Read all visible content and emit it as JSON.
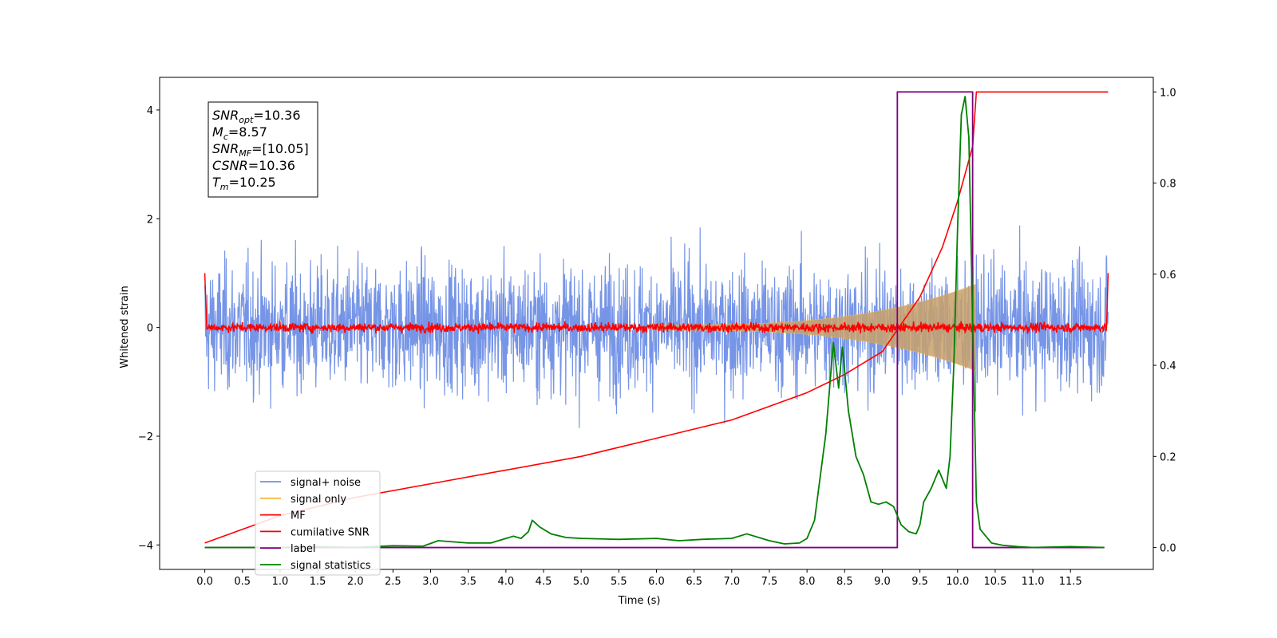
{
  "chart_data": {
    "type": "line",
    "xlabel": "Time (s)",
    "ylabel": "Whitened strain",
    "xlim": [
      -0.6,
      12.6
    ],
    "ylim": [
      -4.45,
      4.6
    ],
    "y2lim": [
      -0.048,
      1.032
    ],
    "x_ticks": [
      "0.0",
      "0.5",
      "1.0",
      "1.5",
      "2.0",
      "2.5",
      "3.0",
      "3.5",
      "4.0",
      "4.5",
      "5.0",
      "5.5",
      "6.0",
      "6.5",
      "7.0",
      "7.5",
      "8.0",
      "8.5",
      "9.0",
      "9.5",
      "10.0",
      "10.5",
      "11.0",
      "11.5"
    ],
    "y_ticks": [
      "−4",
      "−2",
      "0",
      "2",
      "4"
    ],
    "y2_ticks": [
      "0.0",
      "0.2",
      "0.4",
      "0.6",
      "0.8",
      "1.0"
    ],
    "legend_position": "lower left",
    "series": [
      {
        "name": "signal+ noise",
        "color": "#6f8fe6",
        "axis": "left",
        "description_range": [
          -4.0,
          4.15
        ],
        "x_range": [
          0.0,
          12.0
        ]
      },
      {
        "name": "signal only",
        "color": "#f5b942",
        "axis": "left",
        "chirp_end": 10.25
      },
      {
        "name": "MF",
        "color": "#ff0000",
        "axis": "left",
        "start_value": 1.0,
        "band": [
          -0.15,
          0.15
        ]
      },
      {
        "name": "cumilative SNR",
        "color": "#ff0000",
        "axis": "right",
        "x": [
          0.0,
          1.0,
          2.0,
          3.0,
          4.0,
          5.0,
          6.0,
          7.0,
          7.5,
          8.0,
          8.5,
          9.0,
          9.5,
          9.8,
          10.0,
          10.1,
          10.2,
          10.25,
          12.0
        ],
        "y": [
          0.01,
          0.07,
          0.11,
          0.14,
          0.17,
          0.2,
          0.24,
          0.28,
          0.31,
          0.34,
          0.38,
          0.43,
          0.55,
          0.66,
          0.76,
          0.82,
          0.88,
          1.0,
          1.0
        ]
      },
      {
        "name": "label",
        "color": "#800080",
        "axis": "right",
        "x": [
          0.0,
          9.2,
          9.2,
          10.2,
          10.2,
          11.95
        ],
        "y": [
          0.0,
          0.0,
          1.0,
          1.0,
          0.0,
          0.0
        ]
      },
      {
        "name": "signal statistics",
        "color": "#008000",
        "axis": "right",
        "x": [
          0.0,
          0.5,
          1.0,
          1.5,
          2.0,
          2.5,
          2.9,
          3.1,
          3.5,
          3.8,
          4.0,
          4.1,
          4.2,
          4.3,
          4.35,
          4.45,
          4.6,
          4.8,
          5.0,
          5.5,
          6.0,
          6.3,
          6.6,
          7.0,
          7.2,
          7.5,
          7.7,
          7.9,
          8.0,
          8.1,
          8.25,
          8.35,
          8.42,
          8.47,
          8.55,
          8.65,
          8.75,
          8.85,
          8.95,
          9.05,
          9.15,
          9.25,
          9.35,
          9.45,
          9.5,
          9.55,
          9.65,
          9.75,
          9.8,
          9.85,
          9.9,
          9.95,
          10.0,
          10.05,
          10.1,
          10.15,
          10.2,
          10.25,
          10.3,
          10.45,
          10.6,
          10.8,
          11.0,
          11.5,
          11.95
        ],
        "y": [
          0.0,
          0.0,
          0.0,
          0.002,
          0.0,
          0.004,
          0.003,
          0.015,
          0.01,
          0.01,
          0.02,
          0.025,
          0.02,
          0.035,
          0.06,
          0.045,
          0.03,
          0.022,
          0.02,
          0.018,
          0.02,
          0.015,
          0.018,
          0.02,
          0.03,
          0.015,
          0.008,
          0.01,
          0.02,
          0.06,
          0.25,
          0.45,
          0.35,
          0.44,
          0.3,
          0.2,
          0.16,
          0.1,
          0.095,
          0.1,
          0.09,
          0.05,
          0.035,
          0.03,
          0.05,
          0.1,
          0.13,
          0.17,
          0.15,
          0.13,
          0.2,
          0.4,
          0.7,
          0.95,
          0.99,
          0.9,
          0.5,
          0.1,
          0.04,
          0.01,
          0.005,
          0.002,
          0.0,
          0.002,
          0.0
        ]
      }
    ],
    "annotation": [
      {
        "base": "SNR",
        "sub": "opt",
        "value": "=10.36"
      },
      {
        "base": "M",
        "sub": "c",
        "value": "=8.57"
      },
      {
        "base": "SNR",
        "sub": "MF",
        "value": "=[10.05]"
      },
      {
        "base": "CSNR",
        "sub": "",
        "value": "=10.36"
      },
      {
        "base": "T",
        "sub": "m",
        "value": "=10.25"
      }
    ]
  }
}
